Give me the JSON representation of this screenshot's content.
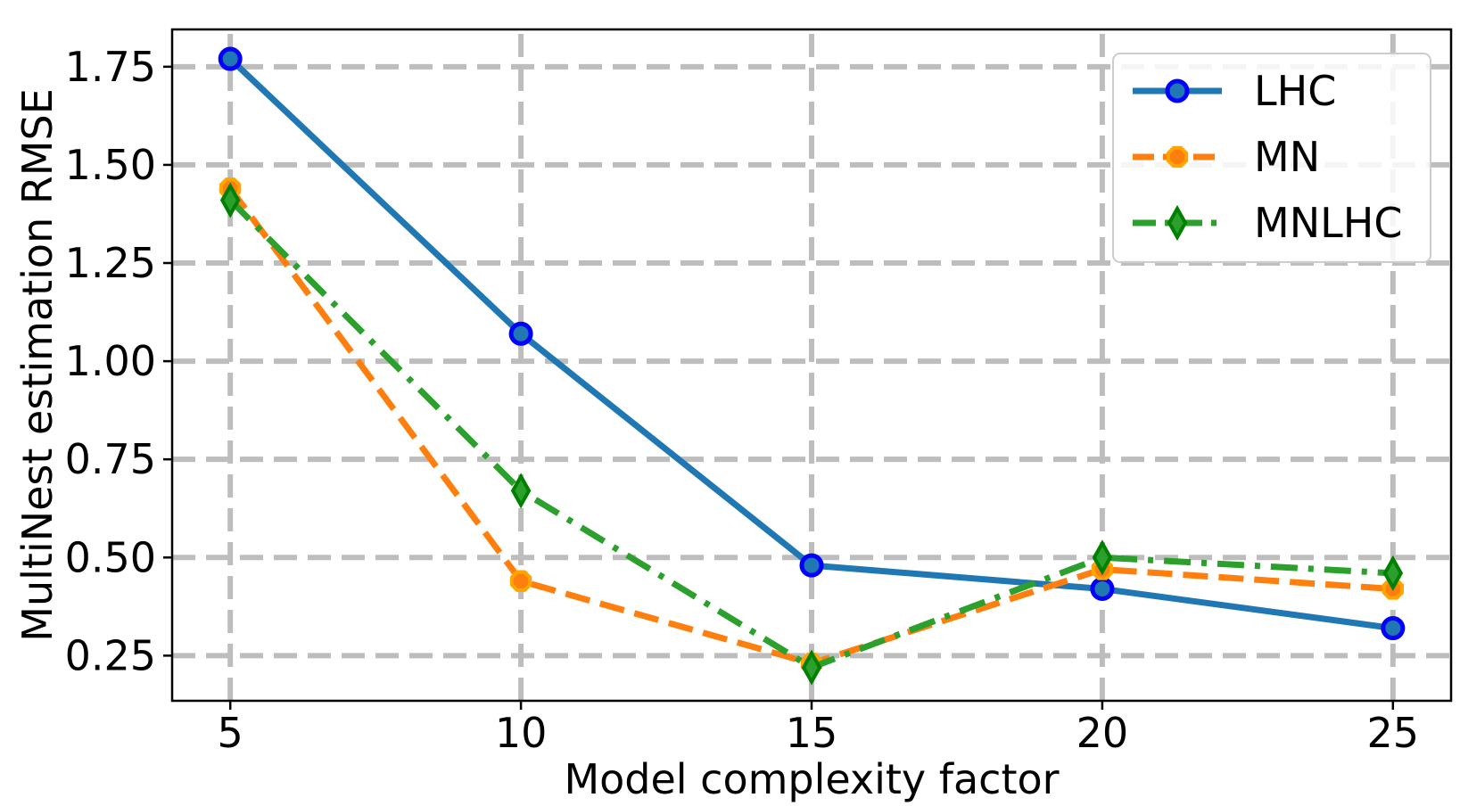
{
  "chart_data": {
    "type": "line",
    "xlabel": "Model complexity factor",
    "ylabel": "MultiNest estimation RMSE",
    "x": [
      5,
      10,
      15,
      20,
      25
    ],
    "xticks": [
      "5",
      "10",
      "15",
      "20",
      "25"
    ],
    "yticks": [
      "0.25",
      "0.50",
      "0.75",
      "1.00",
      "1.25",
      "1.50",
      "1.75"
    ],
    "xlim": [
      4.0,
      26.0
    ],
    "ylim": [
      0.135,
      1.845
    ],
    "grid": true,
    "legend_position": "top-right",
    "series": [
      {
        "name": "LHC",
        "values": [
          1.77,
          1.07,
          0.48,
          0.42,
          0.32
        ],
        "color": "#1f77b4",
        "marker_color": "#0000ff",
        "marker": "circle",
        "linestyle": "solid"
      },
      {
        "name": "MN",
        "values": [
          1.44,
          0.44,
          0.23,
          0.47,
          0.42
        ],
        "color": "#ff7f0e",
        "marker_color": "#ffa500",
        "marker": "octagon",
        "linestyle": "dashed"
      },
      {
        "name": "MNLHC",
        "values": [
          1.41,
          0.67,
          0.22,
          0.5,
          0.46
        ],
        "color": "#2ca02c",
        "marker_color": "#008000",
        "marker": "thin-diamond",
        "linestyle": "dashdot"
      }
    ]
  }
}
